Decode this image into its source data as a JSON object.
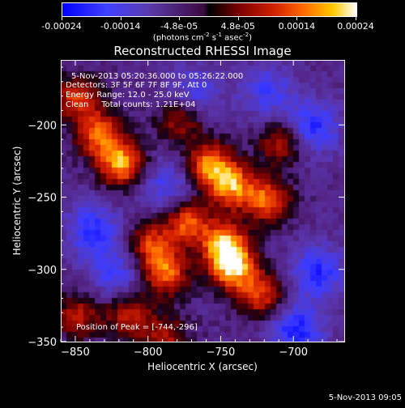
{
  "colorbar": {
    "ticks": [
      "-0.00024",
      "-0.00014",
      "-4.8e-05",
      "4.8e-05",
      "0.00014",
      "0.00024"
    ],
    "units_main": "(photons cm",
    "units_sup1": "-2",
    "units_mid": " s",
    "units_sup2": "-1",
    "units_tail": " asec",
    "units_sup3": "-2",
    "units_end": ")"
  },
  "chart_data": {
    "type": "heatmap",
    "title": "Reconstructed RHESSI Image",
    "xlabel": "Heliocentric X (arcsec)",
    "ylabel": "Heliocentric Y (arcsec)",
    "xlim": [
      -860,
      -665
    ],
    "ylim": [
      -350,
      -155
    ],
    "xticks": [
      -850,
      -800,
      -750,
      -700
    ],
    "yticks": [
      -350,
      -300,
      -250,
      -200
    ],
    "colorbar_range": [
      -0.00024,
      0.00024
    ],
    "annotations": [
      "5-Nov-2013 05:20:36.000 to 05:26:22.000",
      "Detectors: 3F 5F 6F 7F 8F 9F, Att 0",
      "Energy Range: 12.0 - 25.0 keV",
      "Clean     Total counts: 1.21E+04"
    ],
    "peak_label": "Position of Peak = [-744,-296]",
    "peak": [
      -744,
      -296
    ],
    "emission_regions": [
      {
        "x": -835,
        "y": -205,
        "level": 0.8
      },
      {
        "x": -820,
        "y": -225,
        "level": 0.95
      },
      {
        "x": -850,
        "y": -180,
        "level": 0.7
      },
      {
        "x": -760,
        "y": -225,
        "level": 0.85
      },
      {
        "x": -745,
        "y": -240,
        "level": 0.9
      },
      {
        "x": -720,
        "y": -250,
        "level": 0.8
      },
      {
        "x": -775,
        "y": -265,
        "level": 0.75
      },
      {
        "x": -750,
        "y": -280,
        "level": 0.9
      },
      {
        "x": -744,
        "y": -296,
        "level": 1.0
      },
      {
        "x": -790,
        "y": -300,
        "level": 0.8
      },
      {
        "x": -800,
        "y": -280,
        "level": 0.65
      },
      {
        "x": -725,
        "y": -315,
        "level": 0.7
      },
      {
        "x": -815,
        "y": -330,
        "level": 0.6
      },
      {
        "x": -850,
        "y": -330,
        "level": 0.55
      },
      {
        "x": -790,
        "y": -345,
        "level": 0.5
      },
      {
        "x": -710,
        "y": -210,
        "level": 0.6
      },
      {
        "x": -780,
        "y": -195,
        "level": 0.5
      }
    ],
    "negative_regions": [
      {
        "x": -840,
        "y": -270,
        "level": 0.6
      },
      {
        "x": -690,
        "y": -200,
        "level": 0.7
      },
      {
        "x": -685,
        "y": -300,
        "level": 0.65
      },
      {
        "x": -720,
        "y": -175,
        "level": 0.5
      },
      {
        "x": -770,
        "y": -175,
        "level": 0.45
      },
      {
        "x": -700,
        "y": -340,
        "level": 0.7
      },
      {
        "x": -790,
        "y": -240,
        "level": 0.5
      },
      {
        "x": -825,
        "y": -300,
        "level": 0.5
      }
    ]
  },
  "footer": "5-Nov-2013 09:05"
}
